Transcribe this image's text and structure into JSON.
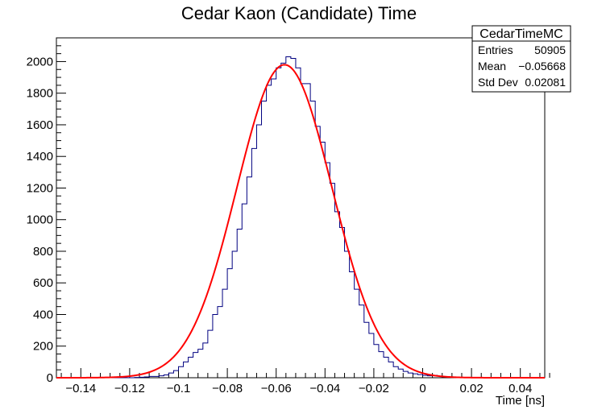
{
  "chart_data": {
    "type": "histogram",
    "title": "Cedar Kaon (Candidate) Time",
    "xlabel": "Time [ns]",
    "ylabel": "",
    "xlim": [
      -0.15,
      0.05
    ],
    "ylim": [
      0,
      2150
    ],
    "x_ticks": [
      {
        "value": -0.14,
        "label": "−0.14"
      },
      {
        "value": -0.12,
        "label": "−0.12"
      },
      {
        "value": -0.1,
        "label": "−0.1"
      },
      {
        "value": -0.08,
        "label": "−0.08"
      },
      {
        "value": -0.06,
        "label": "−0.06"
      },
      {
        "value": -0.04,
        "label": "−0.04"
      },
      {
        "value": -0.02,
        "label": "−0.02"
      },
      {
        "value": 0.0,
        "label": "0"
      },
      {
        "value": 0.02,
        "label": "0.02"
      },
      {
        "value": 0.04,
        "label": "0.04"
      }
    ],
    "y_ticks": [
      0,
      200,
      400,
      600,
      800,
      1000,
      1200,
      1400,
      1600,
      1800,
      2000
    ],
    "grid": false,
    "bins": {
      "start": -0.15,
      "width": 0.002
    },
    "series": [
      {
        "kind": "histogram",
        "color": "#000080",
        "values": [
          0,
          0,
          0,
          0,
          0,
          0,
          0,
          0,
          0,
          0,
          0,
          0,
          0,
          0,
          0,
          0,
          2,
          3,
          5,
          8,
          8,
          12,
          18,
          30,
          45,
          70,
          100,
          130,
          160,
          180,
          220,
          300,
          400,
          450,
          560,
          690,
          800,
          940,
          1100,
          1270,
          1450,
          1600,
          1750,
          1850,
          1890,
          1960,
          1990,
          2030,
          2020,
          1960,
          1860,
          1860,
          1750,
          1590,
          1490,
          1360,
          1230,
          1050,
          950,
          800,
          670,
          560,
          460,
          350,
          280,
          210,
          165,
          130,
          100,
          70,
          55,
          40,
          30,
          25,
          20,
          15,
          12,
          15,
          10,
          5,
          3,
          3,
          0,
          0,
          0,
          0,
          0,
          0,
          0,
          0,
          0,
          0,
          0,
          0,
          0,
          0,
          0,
          0,
          0,
          0
        ]
      },
      {
        "name": "",
        "kind": "gaussian-fit",
        "color": "#ff0000",
        "constant": 1980,
        "mean": -0.0566,
        "sigma": 0.0195
      }
    ],
    "stats_box": {
      "name": "CedarTimeMC",
      "rows": [
        {
          "label": "Entries",
          "value": "50905"
        },
        {
          "label": "Mean",
          "value": "−0.05668"
        },
        {
          "label": "Std Dev",
          "value": "0.02081"
        }
      ]
    }
  }
}
